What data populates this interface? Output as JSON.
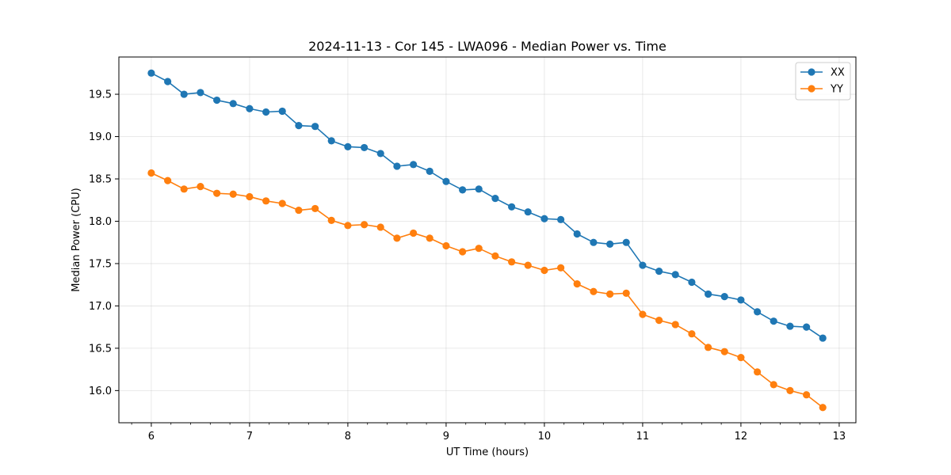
{
  "chart_data": {
    "type": "line",
    "title": "2024-11-13 - Cor 145 - LWA096 - Median Power vs. Time",
    "xlabel": "UT Time (hours)",
    "ylabel": "Median Power (CPU)",
    "xlim": [
      5.67,
      13.17
    ],
    "ylim": [
      15.62,
      19.94
    ],
    "xticks": [
      6,
      7,
      8,
      9,
      10,
      11,
      12,
      13
    ],
    "yticks": [
      16.0,
      16.5,
      17.0,
      17.5,
      18.0,
      18.5,
      19.0,
      19.5
    ],
    "grid": true,
    "legend_position": "top-right",
    "x": [
      6.0,
      6.167,
      6.333,
      6.5,
      6.667,
      6.833,
      7.0,
      7.167,
      7.333,
      7.5,
      7.667,
      7.833,
      8.0,
      8.167,
      8.333,
      8.5,
      8.667,
      8.833,
      9.0,
      9.167,
      9.333,
      9.5,
      9.667,
      9.833,
      10.0,
      10.167,
      10.333,
      10.5,
      10.667,
      10.833,
      11.0,
      11.167,
      11.333,
      11.5,
      11.667,
      11.833,
      12.0,
      12.167,
      12.333,
      12.5,
      12.667,
      12.833
    ],
    "series": [
      {
        "name": "XX",
        "color": "#1f77b4",
        "values": [
          19.75,
          19.65,
          19.5,
          19.52,
          19.43,
          19.39,
          19.33,
          19.29,
          19.3,
          19.13,
          19.12,
          18.95,
          18.88,
          18.87,
          18.8,
          18.65,
          18.67,
          18.59,
          18.47,
          18.37,
          18.38,
          18.27,
          18.17,
          18.11,
          18.03,
          18.02,
          17.85,
          17.75,
          17.73,
          17.75,
          17.48,
          17.41,
          17.37,
          17.28,
          17.14,
          17.11,
          17.07,
          16.93,
          16.82,
          16.76,
          16.75,
          16.62
        ]
      },
      {
        "name": "YY",
        "color": "#ff7f0e",
        "values": [
          18.57,
          18.48,
          18.38,
          18.41,
          18.33,
          18.32,
          18.29,
          18.24,
          18.21,
          18.13,
          18.15,
          18.01,
          17.95,
          17.96,
          17.93,
          17.8,
          17.86,
          17.8,
          17.71,
          17.64,
          17.68,
          17.59,
          17.52,
          17.48,
          17.42,
          17.45,
          17.26,
          17.17,
          17.14,
          17.15,
          16.9,
          16.83,
          16.78,
          16.67,
          16.51,
          16.46,
          16.39,
          16.22,
          16.07,
          16.0,
          15.95,
          15.8
        ]
      }
    ]
  }
}
